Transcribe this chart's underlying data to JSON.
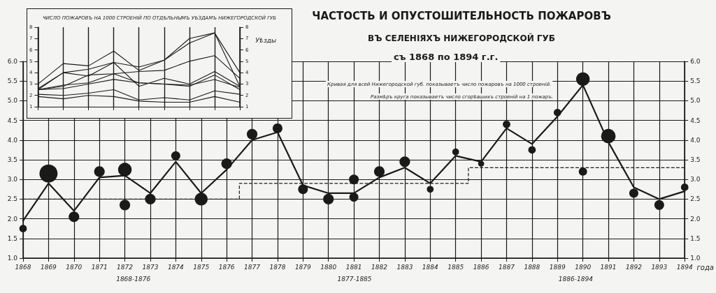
{
  "chart_data": [
    {
      "type": "line",
      "title": "ЧАСТОСТЬ И ОПУСТОШИТЕЛЬНОСТЬ ПОЖАРОВЪ",
      "subtitle": "ВЪ СЕЛЕНІЯХЪ НИЖЕГОРОДСКОЙ ГУБ",
      "xlabel": "года",
      "annotations": [
        "съ 1868 по 1894 г.г.",
        "Кривая для всей Нижегородской губ. показываетъ число пожаровъ на 1000 строеній.",
        "Размѣръ круга показываетъ число сгорѣвшихъ строеній на 1 пожаръ.",
        "1868-1876",
        "1877-1885",
        "1886-1894"
      ],
      "xlim": [
        1868,
        1894
      ],
      "xticks": [
        1868,
        1869,
        1870,
        1871,
        1872,
        1873,
        1874,
        1875,
        1876,
        1877,
        1878,
        1879,
        1880,
        1881,
        1882,
        1883,
        1884,
        1885,
        1886,
        1887,
        1888,
        1889,
        1890,
        1891,
        1892,
        1893,
        1894
      ],
      "ylim": [
        1,
        6
      ],
      "yticks": [
        {
          "value": 1,
          "label": "1.0"
        },
        {
          "value": 1.5,
          "label": "1.5"
        },
        {
          "value": 2,
          "label": "2.0"
        },
        {
          "value": 2.5,
          "label": "2.5"
        },
        {
          "value": 3,
          "label": "3.0"
        },
        {
          "value": 3.5,
          "label": "3.5"
        },
        {
          "value": 4,
          "label": "4.0"
        },
        {
          "value": 4.5,
          "label": "4.5"
        },
        {
          "value": 5,
          "label": "5.0"
        },
        {
          "value": 5.5,
          "label": "5.5"
        },
        {
          "value": 6,
          "label": "6.0"
        }
      ],
      "y2lim": [
        1,
        6
      ],
      "y2ticks": [
        {
          "value": 1,
          "label": "1.0"
        },
        {
          "value": 1.5,
          "label": "1.5"
        },
        {
          "value": 2,
          "label": "2.0"
        },
        {
          "value": 2.5,
          "label": "2.5"
        },
        {
          "value": 3,
          "label": "3.0"
        },
        {
          "value": 3.5,
          "label": "3.5"
        },
        {
          "value": 4,
          "label": "4.0"
        },
        {
          "value": 4.5,
          "label": "4.5"
        },
        {
          "value": 5,
          "label": "5.0"
        },
        {
          "value": 5.5,
          "label": "5.5"
        },
        {
          "value": 6,
          "label": "6.0"
        }
      ],
      "grid": true,
      "marker": "none",
      "series": [
        {
          "color": "#1a1a1a",
          "line_style": "solid",
          "x": [
            1868,
            1869,
            1870,
            1871,
            1872,
            1873,
            1874,
            1875,
            1876,
            1877,
            1878,
            1879,
            1880,
            1881,
            1882,
            1883,
            1884,
            1885,
            1886,
            1887,
            1888,
            1889,
            1890,
            1891,
            1892,
            1893,
            1894
          ],
          "values": [
            1.95,
            2.9,
            2.2,
            3.05,
            3.1,
            2.65,
            3.45,
            2.65,
            3.25,
            4.0,
            4.2,
            2.85,
            2.65,
            2.65,
            3.05,
            3.3,
            2.9,
            3.6,
            3.45,
            4.3,
            3.9,
            4.6,
            5.4,
            3.95,
            2.8,
            2.5,
            2.7
          ]
        },
        {
          "type": "step",
          "color": "#1a1a1a",
          "line_style": "dashed",
          "x": [
            1868,
            1876.5,
            1885.5,
            1894
          ],
          "values": [
            2.5,
            2.9,
            3.3,
            3.3
          ]
        },
        {
          "type": "bubble",
          "color": "#1a1a1a",
          "marker": "circle",
          "x": [
            1868,
            1869,
            1870,
            1871,
            1872,
            1872,
            1873,
            1874,
            1875,
            1876,
            1877,
            1878,
            1879,
            1880,
            1881,
            1881,
            1882,
            1883,
            1884,
            1885,
            1886,
            1887,
            1888,
            1889,
            1890,
            1890,
            1891,
            1892,
            1893,
            1894
          ],
          "values": [
            1.75,
            3.15,
            2.05,
            3.2,
            3.25,
            2.35,
            2.5,
            3.6,
            2.5,
            3.4,
            4.15,
            4.3,
            2.75,
            2.5,
            3.0,
            2.55,
            3.2,
            3.45,
            2.75,
            3.7,
            3.4,
            4.4,
            3.75,
            4.7,
            5.55,
            3.2,
            4.1,
            2.65,
            2.35,
            2.8
          ],
          "sizes": [
            0.17,
            1,
            0.34,
            0.34,
            0.56,
            0.34,
            0.34,
            0.25,
            0.5,
            0.34,
            0.34,
            0.29,
            0.29,
            0.34,
            0.29,
            0.25,
            0.34,
            0.34,
            0.14,
            0.14,
            0.11,
            0.17,
            0.17,
            0.17,
            0.56,
            0.21,
            0.63,
            0.25,
            0.29,
            0.17
          ]
        }
      ]
    },
    {
      "type": "line",
      "title": "ЧИСЛО ПОЖАРОВЪ НА 1000 СТРОЕНІЙ ПО ОТДѢЛЬНЫМЪ УѢЗДАМЪ НИЖЕГОРОДСКОЙ ГУБ",
      "legend_title": "Уѣзды",
      "categories": [
        null,
        null,
        null,
        null,
        null,
        null,
        null,
        null,
        null
      ],
      "ylim": [
        1,
        8
      ],
      "yticks": [
        1,
        2,
        3,
        4,
        5,
        6,
        7,
        8
      ],
      "y2lim": [
        1,
        8
      ],
      "y2ticks": [
        1,
        2,
        3,
        4,
        5,
        6,
        7,
        8
      ],
      "tick_labels": "y",
      "grid": "x",
      "marker": "none",
      "line_style": "solid",
      "series": [
        {
          "color": "#1a1a1a",
          "values": [
            3.0,
            4.8,
            4.6,
            5.9,
            4.2,
            5.1,
            7.0,
            7.5,
            2.8
          ]
        },
        {
          "color": "#1a1a1a",
          "values": [
            2.6,
            4.0,
            4.3,
            4.9,
            4.5,
            5.1,
            6.6,
            7.5,
            4.0
          ]
        },
        {
          "color": "#1a1a1a",
          "values": [
            2.5,
            2.8,
            3.8,
            3.9,
            4.1,
            4.2,
            5.0,
            5.5,
            3.5
          ]
        },
        {
          "color": "#1a1a1a",
          "values": [
            2.5,
            4.0,
            3.7,
            4.9,
            2.8,
            3.5,
            3.0,
            4.1,
            2.8
          ]
        },
        {
          "color": "#1a1a1a",
          "values": [
            2.5,
            2.9,
            3.1,
            3.9,
            3.1,
            3.0,
            2.8,
            3.8,
            2.5
          ]
        },
        {
          "color": "#1a1a1a",
          "values": [
            2.5,
            2.6,
            3.0,
            3.4,
            3.1,
            3.0,
            2.9,
            3.4,
            2.7
          ]
        },
        {
          "color": "#1a1a1a",
          "values": [
            2.1,
            2.0,
            2.2,
            2.5,
            1.6,
            1.8,
            1.6,
            2.4,
            2.1
          ]
        },
        {
          "color": "#1a1a1a",
          "values": [
            1.9,
            1.7,
            2.0,
            1.9,
            1.5,
            1.4,
            1.4,
            1.9,
            1.4
          ]
        }
      ]
    }
  ]
}
